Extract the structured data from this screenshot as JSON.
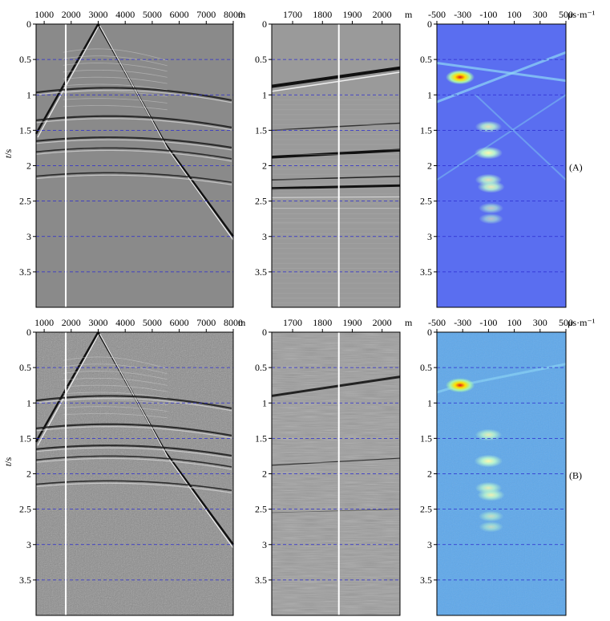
{
  "figure": {
    "y_label_italic": "t",
    "y_label_rest": "/s",
    "rows": [
      {
        "label": "(A)",
        "noise": "clean"
      },
      {
        "label": "(B)",
        "noise": "noisy"
      }
    ],
    "panels": [
      {
        "id": "shot-gather",
        "x_unit": "m",
        "x_ticks": [
          "1000",
          "2000",
          "3000",
          "4000",
          "5000",
          "6000",
          "7000",
          "8000"
        ],
        "x_range": [
          700,
          8000
        ],
        "marker_x": 1800
      },
      {
        "id": "trace-zoom",
        "x_unit": "m",
        "x_ticks": [
          "1700",
          "1800",
          "1900",
          "2000"
        ],
        "x_range": [
          1630,
          2060
        ],
        "marker_x": 1855
      },
      {
        "id": "radon-panel",
        "x_unit": "μs·m⁻¹",
        "x_ticks": [
          "-500",
          "-300",
          "-100",
          "100",
          "300",
          "500"
        ],
        "x_range": [
          -500,
          500
        ]
      }
    ],
    "y_ticks": [
      "0",
      "0.5",
      "1",
      "1.5",
      "2",
      "2.5",
      "3",
      "3.5"
    ],
    "y_range": [
      0,
      4.0
    ],
    "dashed_grid_color": "#2b2bd0",
    "radon_background_A": "#5a6ef0",
    "radon_background_B": "#5fa8ea",
    "energy_spots": [
      {
        "p": -320,
        "t": 0.75,
        "strength": 1.0
      },
      {
        "p": -100,
        "t": 1.45,
        "strength": 0.45
      },
      {
        "p": -100,
        "t": 1.82,
        "strength": 0.6
      },
      {
        "p": -100,
        "t": 2.2,
        "strength": 0.45
      },
      {
        "p": -80,
        "t": 2.3,
        "strength": 0.5
      },
      {
        "p": -80,
        "t": 2.6,
        "strength": 0.25
      },
      {
        "p": -80,
        "t": 2.75,
        "strength": 0.2
      }
    ]
  }
}
